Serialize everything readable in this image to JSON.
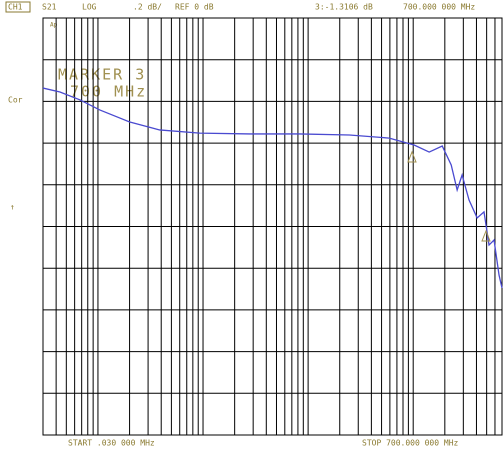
{
  "header": {
    "channel": "CH1",
    "parameter": "S21",
    "format": "LOG",
    "scale": ".2 dB/",
    "reference": "REF 0 dB",
    "marker_readout": "3:-1.3106 dB",
    "marker_frequency": "700.000 000 MHz"
  },
  "side": {
    "ap": "Ap",
    "cor": "Cor",
    "arrow": "↑"
  },
  "marker_label": {
    "title": "MARKER 3",
    "frequency": "700 MHz"
  },
  "footer": {
    "start": "START .030 000 MHz",
    "stop": "STOP 700.000 000 MHz"
  },
  "chart_data": {
    "type": "line",
    "xscale": "log",
    "color": "#4a4ad0",
    "grid": true,
    "x": [
      0.03,
      0.0435,
      0.0676,
      0.104,
      0.201,
      0.387,
      0.93,
      2.77,
      8.26,
      24.7,
      59.2,
      102,
      142,
      189,
      230,
      262,
      292,
      340,
      406,
      472,
      527,
      588,
      656,
      700
    ],
    "values": [
      -0.336,
      -0.355,
      -0.393,
      -0.441,
      -0.499,
      -0.537,
      -0.552,
      -0.556,
      -0.556,
      -0.561,
      -0.576,
      -0.609,
      -0.643,
      -0.614,
      -0.705,
      -0.825,
      -0.753,
      -0.873,
      -0.959,
      -0.93,
      -1.089,
      -1.065,
      -1.233,
      -1.295
    ],
    "xlim": [
      0.03,
      700
    ],
    "ylim": [
      -2,
      0
    ],
    "xticks": [
      0.04,
      0.05,
      0.06,
      0.07,
      0.08,
      0.09,
      0.1,
      0.2,
      0.3,
      0.4,
      0.5,
      0.6,
      0.7,
      0.8,
      0.9,
      1,
      2,
      3,
      4,
      5,
      6,
      7,
      8,
      9,
      10,
      20,
      30,
      40,
      50,
      60,
      70,
      80,
      90,
      100,
      200,
      300,
      400,
      500,
      600,
      700
    ],
    "yticks": [
      0,
      -0.2,
      -0.4,
      -0.6,
      -0.8,
      -1,
      -1.2,
      -1.4,
      -1.6,
      -1.8,
      -2
    ]
  }
}
